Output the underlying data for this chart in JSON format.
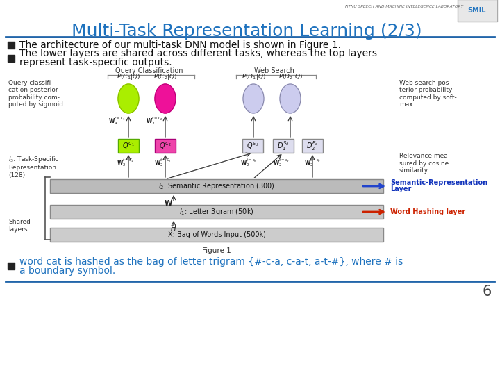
{
  "title": "Multi-Task Representation Learning (2/3)",
  "title_color": "#1E72BE",
  "header_text": "NTNU SPEECH AND MACHINE INTELEGENCE LABORATORY",
  "bg_color": "#FFFFFF",
  "bullet1": "The architecture of our multi-task DNN model is shown in Figure 1.",
  "bullet2_line1": "The lower layers are shared across different tasks, whereas the top layers",
  "bullet2_line2": "represent task-specific outputs.",
  "bullet3_line1": "word cat is hashed as the bag of letter trigram {#-c-a, c-a-t, a-t-#}, where # is",
  "bullet3_line2": "a boundary symbol.",
  "bullet3_color": "#1E72BE",
  "footer_num": "6",
  "sem_label_1": "Semantic-Representation",
  "sem_label_2": "Layer",
  "word_label": "Word Hashing layer",
  "figure_caption": "Figure 1",
  "title_fontsize": 18,
  "bullet_fontsize": 10,
  "diagram_fontsize": 7
}
